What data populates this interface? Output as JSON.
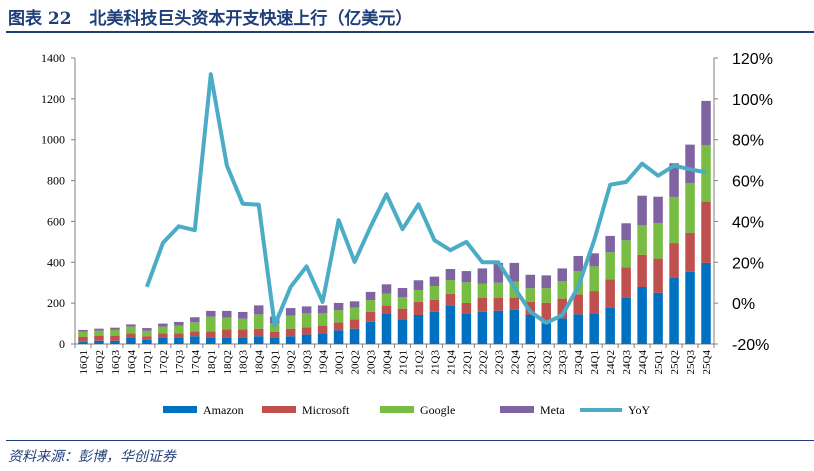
{
  "title": "图表 22   北美科技巨头资本开支快速上行（亿美元）",
  "source": "资料来源：彭博，华创证券",
  "chart_data": {
    "type": "bar",
    "stacked": true,
    "categories": [
      "16Q1",
      "16Q2",
      "16Q3",
      "16Q4",
      "17Q1",
      "17Q2",
      "17Q3",
      "17Q4",
      "18Q1",
      "18Q2",
      "18Q3",
      "18Q4",
      "19Q1",
      "19Q2",
      "19Q3",
      "19Q4",
      "20Q1",
      "20Q2",
      "20Q3",
      "20Q4",
      "21Q1",
      "21Q2",
      "21Q3",
      "21Q4",
      "22Q1",
      "22Q2",
      "22Q3",
      "22Q4",
      "23Q1",
      "23Q2",
      "23Q3",
      "23Q4",
      "24Q1",
      "24Q2",
      "24Q3",
      "24Q4",
      "25Q1",
      "25Q2",
      "25Q3",
      "25Q4"
    ],
    "series": [
      {
        "name": "Amazon",
        "color": "#0070C0",
        "values": [
          11,
          16,
          16,
          33,
          21,
          33,
          33,
          38,
          33,
          33,
          33,
          38,
          33,
          38,
          46,
          52,
          67,
          75,
          109,
          150,
          121,
          142,
          158,
          188,
          150,
          158,
          163,
          168,
          142,
          101,
          126,
          145,
          150,
          178,
          227,
          279,
          251,
          323,
          353,
          397
        ]
      },
      {
        "name": "Microsoft",
        "color": "#C0504D",
        "values": [
          25,
          25,
          25,
          18,
          17,
          19,
          19,
          24,
          29,
          39,
          39,
          37,
          26,
          37,
          36,
          38,
          39,
          46,
          49,
          38,
          52,
          65,
          59,
          58,
          51,
          69,
          64,
          59,
          65,
          101,
          96,
          98,
          109,
          139,
          148,
          158,
          167,
          171,
          192,
          300
        ]
      },
      {
        "name": "Google",
        "color": "#77BC43",
        "values": [
          24,
          24,
          28,
          34,
          27,
          33,
          38,
          44,
          72,
          57,
          52,
          70,
          42,
          64,
          68,
          60,
          60,
          57,
          57,
          58,
          57,
          57,
          67,
          67,
          101,
          68,
          73,
          78,
          66,
          71,
          85,
          114,
          121,
          132,
          133,
          144,
          173,
          226,
          243,
          277
        ]
      },
      {
        "name": "Meta",
        "color": "#8064A2",
        "values": [
          9,
          10,
          11,
          11,
          13,
          15,
          18,
          25,
          28,
          33,
          33,
          44,
          33,
          37,
          34,
          39,
          35,
          31,
          40,
          46,
          44,
          48,
          46,
          54,
          55,
          75,
          97,
          92,
          66,
          63,
          63,
          74,
          64,
          80,
          83,
          145,
          130,
          165,
          188,
          216
        ]
      }
    ],
    "line_series": {
      "name": "YoY",
      "color": "#4BACC6",
      "axis": "right",
      "values": [
        null,
        null,
        null,
        null,
        8,
        29.5,
        37.6,
        35.7,
        112,
        67.5,
        48.7,
        48.2,
        -10.8,
        8,
        18,
        0.6,
        40.6,
        20.2,
        37.3,
        53.3,
        36.2,
        48.4,
        30.8,
        25.9,
        30,
        20,
        20,
        7.7,
        -4.2,
        -9.6,
        -5.9,
        8,
        30.8,
        58,
        59.3,
        68.3,
        62.4,
        67.3,
        65.5,
        64
      ]
    },
    "left_axis": {
      "range": [
        0,
        1400
      ],
      "ticks": [
        "0",
        "200",
        "400",
        "600",
        "800",
        "1000",
        "1200",
        "1400"
      ]
    },
    "right_axis": {
      "range": [
        -20,
        120
      ],
      "ticks": [
        "-20%",
        "0%",
        "20%",
        "40%",
        "60%",
        "80%",
        "100%",
        "120%"
      ]
    },
    "grid": false,
    "legend_position": "bottom"
  }
}
